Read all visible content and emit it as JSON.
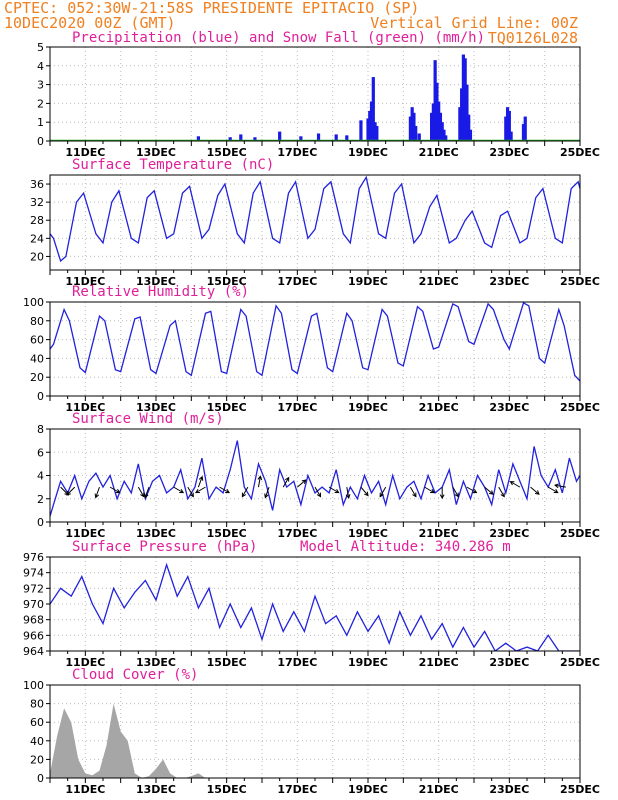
{
  "header": {
    "line1_left": "CPTEC:  052:30W-21:58S  PRESIDENTE EPITACIO (SP)",
    "line2_left": "10DEC2020 00Z (GMT)",
    "line2_right": "Vertical Grid Line: 00Z",
    "line3_right": "TQ0126L028"
  },
  "colors": {
    "header_text": "#f08020",
    "panel_title": "#e0209a",
    "series_line": "#2222dd",
    "precip_bar": "#1a1ae6",
    "snow_line": "#22aa22",
    "cloud_fill": "#a6a6a6",
    "grid": "#bbbbbb"
  },
  "chart_data": [
    {
      "id": "precip",
      "type": "bar",
      "title": "Precipitation (blue) and Snow Fall (green) (mm/h)",
      "ylim": [
        0,
        5
      ],
      "yticks": [
        0,
        1,
        2,
        3,
        4,
        5
      ],
      "xlim_days": [
        0,
        15
      ],
      "xtick_labels": [
        "11DEC",
        "13DEC",
        "15DEC",
        "17DEC",
        "19DEC",
        "21DEC",
        "23DEC",
        "25DEC"
      ],
      "grid": true,
      "series": [
        {
          "name": "Precipitation",
          "x": [
            4.2,
            5.1,
            5.4,
            5.8,
            6.5,
            7.1,
            7.6,
            8.1,
            8.4,
            8.8,
            9.0,
            9.05,
            9.1,
            9.15,
            9.2,
            9.25,
            10.2,
            10.25,
            10.3,
            10.35,
            10.45,
            10.8,
            10.85,
            10.9,
            10.95,
            11.0,
            11.05,
            11.1,
            11.15,
            11.2,
            11.6,
            11.65,
            11.7,
            11.75,
            11.8,
            11.85,
            11.9,
            12.9,
            12.95,
            13.0,
            13.05,
            13.4,
            13.45
          ],
          "values": [
            0.25,
            0.2,
            0.35,
            0.2,
            0.5,
            0.25,
            0.4,
            0.35,
            0.3,
            1.1,
            1.2,
            1.6,
            2.1,
            3.4,
            1.0,
            0.8,
            1.3,
            1.8,
            1.5,
            0.8,
            0.4,
            1.5,
            2.0,
            4.3,
            3.1,
            2.1,
            1.5,
            1.0,
            0.6,
            0.3,
            1.8,
            2.8,
            4.6,
            4.4,
            3.0,
            1.4,
            0.6,
            1.3,
            1.8,
            1.6,
            0.5,
            0.9,
            1.3
          ]
        },
        {
          "name": "Snow Fall",
          "x": [
            0,
            15
          ],
          "values": [
            0,
            0
          ]
        }
      ]
    },
    {
      "id": "temp",
      "type": "line",
      "title": "Surface Temperature (nC)",
      "ylim": [
        17,
        38
      ],
      "yticks": [
        20,
        24,
        28,
        32,
        36
      ],
      "xlim_days": [
        0,
        15
      ],
      "xtick_labels": [
        "11DEC",
        "13DEC",
        "15DEC",
        "17DEC",
        "19DEC",
        "21DEC",
        "23DEC",
        "25DEC"
      ],
      "grid": true,
      "series": [
        {
          "x": [
            0,
            0.1,
            0.3,
            0.45,
            0.75,
            0.95,
            1.3,
            1.5,
            1.75,
            1.95,
            2.3,
            2.5,
            2.75,
            2.95,
            3.3,
            3.5,
            3.75,
            3.95,
            4.3,
            4.5,
            4.75,
            4.95,
            5.3,
            5.5,
            5.75,
            5.95,
            6.3,
            6.5,
            6.75,
            6.95,
            7.3,
            7.5,
            7.75,
            7.95,
            8.3,
            8.5,
            8.75,
            8.95,
            9.3,
            9.5,
            9.75,
            9.95,
            10.3,
            10.5,
            10.75,
            10.95,
            11.3,
            11.5,
            11.75,
            11.95,
            12.3,
            12.5,
            12.75,
            12.95,
            13.3,
            13.5,
            13.75,
            13.95,
            14.3,
            14.5,
            14.75,
            14.95,
            15.0
          ],
          "values": [
            25,
            24,
            19,
            20,
            32,
            34,
            25,
            23,
            32,
            34.5,
            24,
            23,
            33,
            34.5,
            24,
            25,
            34,
            35.5,
            24,
            26,
            33.5,
            36,
            25,
            23,
            34,
            36.5,
            24,
            23,
            34,
            36.5,
            24,
            26,
            35,
            36.5,
            25,
            23,
            35,
            37.5,
            25,
            24,
            34,
            36,
            23,
            25,
            31,
            33.5,
            23,
            24,
            28,
            30,
            23,
            22,
            29,
            30,
            23,
            24,
            33,
            35,
            24,
            23,
            35,
            36.5,
            35
          ]
        }
      ]
    },
    {
      "id": "rh",
      "type": "line",
      "title": "Relative Humidity (%)",
      "ylim": [
        0,
        100
      ],
      "yticks": [
        0,
        20,
        40,
        60,
        80,
        100
      ],
      "xlim_days": [
        0,
        15
      ],
      "xtick_labels": [
        "11DEC",
        "13DEC",
        "15DEC",
        "17DEC",
        "19DEC",
        "21DEC",
        "23DEC",
        "25DEC"
      ],
      "grid": true,
      "series": [
        {
          "x": [
            0,
            0.1,
            0.4,
            0.55,
            0.85,
            1.0,
            1.4,
            1.55,
            1.85,
            2.0,
            2.4,
            2.55,
            2.85,
            3.0,
            3.4,
            3.55,
            3.85,
            4.0,
            4.4,
            4.55,
            4.85,
            5.0,
            5.4,
            5.55,
            5.85,
            6.0,
            6.4,
            6.55,
            6.85,
            7.0,
            7.4,
            7.55,
            7.85,
            8.0,
            8.4,
            8.55,
            8.85,
            9.0,
            9.4,
            9.55,
            9.85,
            10.0,
            10.4,
            10.55,
            10.85,
            11.0,
            11.4,
            11.55,
            11.85,
            12.0,
            12.4,
            12.55,
            12.85,
            13.0,
            13.4,
            13.55,
            13.85,
            14.0,
            14.4,
            14.55,
            14.85,
            15.0
          ],
          "values": [
            50,
            55,
            92,
            80,
            30,
            25,
            85,
            80,
            28,
            26,
            82,
            84,
            28,
            24,
            75,
            80,
            26,
            22,
            88,
            90,
            26,
            24,
            92,
            85,
            26,
            22,
            96,
            88,
            28,
            24,
            85,
            88,
            30,
            26,
            88,
            80,
            30,
            28,
            92,
            85,
            35,
            32,
            95,
            90,
            50,
            52,
            98,
            95,
            58,
            55,
            98,
            92,
            60,
            50,
            99,
            96,
            40,
            35,
            92,
            75,
            22,
            16
          ]
        }
      ]
    },
    {
      "id": "wind",
      "type": "line",
      "title": "Surface Wind (m/s)",
      "ylim": [
        0,
        8
      ],
      "yticks": [
        0,
        2,
        4,
        6,
        8
      ],
      "xlim_days": [
        0,
        15
      ],
      "xtick_labels": [
        "11DEC",
        "13DEC",
        "15DEC",
        "17DEC",
        "19DEC",
        "21DEC",
        "23DEC",
        "25DEC"
      ],
      "grid": true,
      "series": [
        {
          "x": [
            0,
            0.1,
            0.3,
            0.5,
            0.7,
            0.9,
            1.1,
            1.3,
            1.5,
            1.7,
            1.9,
            2.1,
            2.3,
            2.5,
            2.7,
            2.9,
            3.1,
            3.3,
            3.5,
            3.7,
            3.9,
            4.1,
            4.3,
            4.5,
            4.7,
            4.9,
            5.1,
            5.3,
            5.5,
            5.7,
            5.9,
            6.1,
            6.3,
            6.5,
            6.7,
            6.9,
            7.1,
            7.3,
            7.5,
            7.7,
            7.9,
            8.1,
            8.3,
            8.5,
            8.7,
            8.9,
            9.1,
            9.3,
            9.5,
            9.7,
            9.9,
            10.1,
            10.3,
            10.5,
            10.7,
            10.9,
            11.1,
            11.3,
            11.5,
            11.7,
            11.9,
            12.1,
            12.3,
            12.5,
            12.7,
            12.9,
            13.1,
            13.3,
            13.5,
            13.7,
            13.9,
            14.1,
            14.3,
            14.5,
            14.7,
            14.9,
            15.0
          ],
          "values": [
            0.5,
            1.5,
            3.5,
            2.5,
            4.0,
            2.0,
            3.5,
            4.2,
            3.0,
            4.0,
            2.0,
            3.5,
            2.5,
            5.0,
            2.0,
            3.5,
            4.0,
            2.5,
            3.0,
            4.5,
            2.0,
            3.0,
            5.5,
            2.0,
            3.0,
            2.5,
            4.5,
            7.0,
            3.0,
            2.0,
            5.0,
            3.5,
            1.0,
            4.5,
            3.0,
            3.5,
            1.5,
            4.0,
            2.5,
            3.0,
            2.5,
            4.5,
            1.5,
            3.0,
            2.0,
            4.0,
            2.5,
            3.5,
            1.5,
            4.0,
            2.0,
            3.0,
            3.5,
            2.0,
            4.0,
            2.5,
            3.0,
            4.5,
            1.5,
            3.5,
            2.0,
            4.0,
            3.0,
            1.5,
            4.5,
            2.5,
            5.0,
            3.5,
            2.0,
            6.5,
            4.0,
            3.0,
            4.5,
            2.5,
            5.5,
            3.5,
            4.0
          ]
        }
      ],
      "wind_arrows": [
        {
          "x": 0.3,
          "from_deg": 315
        },
        {
          "x": 0.7,
          "from_deg": 45
        },
        {
          "x": 1.4,
          "from_deg": 20
        },
        {
          "x": 1.7,
          "from_deg": 300
        },
        {
          "x": 2.5,
          "from_deg": 330
        },
        {
          "x": 2.8,
          "from_deg": 20
        },
        {
          "x": 3.5,
          "from_deg": 300
        },
        {
          "x": 3.9,
          "from_deg": 330
        },
        {
          "x": 4.2,
          "from_deg": 200
        },
        {
          "x": 4.4,
          "from_deg": 60
        },
        {
          "x": 4.8,
          "from_deg": 300
        },
        {
          "x": 5.6,
          "from_deg": 30
        },
        {
          "x": 5.9,
          "from_deg": 190
        },
        {
          "x": 6.2,
          "from_deg": 20
        },
        {
          "x": 6.6,
          "from_deg": 210
        },
        {
          "x": 7.0,
          "from_deg": 230
        },
        {
          "x": 7.5,
          "from_deg": 330
        },
        {
          "x": 7.9,
          "from_deg": 300
        },
        {
          "x": 8.4,
          "from_deg": 350
        },
        {
          "x": 8.8,
          "from_deg": 320
        },
        {
          "x": 9.5,
          "from_deg": 30
        },
        {
          "x": 10.2,
          "from_deg": 330
        },
        {
          "x": 10.6,
          "from_deg": 300
        },
        {
          "x": 11.1,
          "from_deg": 0
        },
        {
          "x": 11.4,
          "from_deg": 330
        },
        {
          "x": 11.8,
          "from_deg": 300
        },
        {
          "x": 12.3,
          "from_deg": 310
        },
        {
          "x": 12.7,
          "from_deg": 330
        },
        {
          "x": 13.3,
          "from_deg": 120
        },
        {
          "x": 13.6,
          "from_deg": 310
        },
        {
          "x": 14.1,
          "from_deg": 300
        },
        {
          "x": 14.6,
          "from_deg": 100
        }
      ]
    },
    {
      "id": "pressure",
      "type": "line",
      "title": "Surface Pressure (hPa)",
      "annotation": "Model Altitude: 340.286 m",
      "ylim": [
        964,
        976
      ],
      "yticks": [
        964,
        966,
        968,
        970,
        972,
        974,
        976
      ],
      "xlim_days": [
        0,
        15
      ],
      "xtick_labels": [
        "11DEC",
        "13DEC",
        "15DEC",
        "17DEC",
        "19DEC",
        "21DEC",
        "23DEC",
        "25DEC"
      ],
      "grid": true,
      "series": [
        {
          "x": [
            0,
            0.3,
            0.6,
            0.9,
            1.2,
            1.5,
            1.8,
            2.1,
            2.4,
            2.7,
            3.0,
            3.3,
            3.6,
            3.9,
            4.2,
            4.5,
            4.8,
            5.1,
            5.4,
            5.7,
            6.0,
            6.3,
            6.6,
            6.9,
            7.2,
            7.5,
            7.8,
            8.1,
            8.4,
            8.7,
            9.0,
            9.3,
            9.6,
            9.9,
            10.2,
            10.5,
            10.8,
            11.1,
            11.4,
            11.7,
            12.0,
            12.3,
            12.6,
            12.9,
            13.2,
            13.5,
            13.8,
            14.1,
            14.4,
            14.7,
            15.0
          ],
          "values": [
            970,
            972,
            971,
            973.5,
            970,
            967.5,
            972,
            969.5,
            971.5,
            973,
            970.5,
            975,
            971,
            973.5,
            969.5,
            972,
            967,
            970,
            967,
            969.5,
            965.5,
            970,
            966.5,
            969,
            966.5,
            971,
            967.5,
            968.5,
            966,
            969,
            966.5,
            968.5,
            965,
            969,
            966,
            968.5,
            965.5,
            967.5,
            964.5,
            967,
            964.5,
            966.5,
            964,
            965,
            964,
            964.5,
            964,
            966,
            964,
            964,
            964
          ]
        }
      ]
    },
    {
      "id": "cloud",
      "type": "area",
      "title": "Cloud Cover (%)",
      "ylim": [
        0,
        100
      ],
      "yticks": [
        0,
        20,
        40,
        60,
        80,
        100
      ],
      "xlim_days": [
        0,
        15
      ],
      "xtick_labels": [
        "11DEC",
        "13DEC",
        "15DEC",
        "17DEC",
        "19DEC",
        "21DEC",
        "23DEC",
        "25DEC"
      ],
      "grid": true,
      "series": [
        {
          "x": [
            0,
            0.2,
            0.4,
            0.6,
            0.8,
            1.0,
            1.2,
            1.4,
            1.6,
            1.8,
            2.0,
            2.2,
            2.4,
            2.6,
            2.8,
            3.0,
            3.2,
            3.4,
            3.6,
            3.8,
            4.0,
            4.2,
            4.4,
            4.6,
            4.8,
            5.0,
            5.5,
            6.0,
            6.5,
            7.0,
            7.5,
            8.0,
            8.5,
            9.0,
            9.5,
            10.0,
            10.5,
            11.0,
            11.5,
            12.0,
            12.5,
            12.8,
            13.0,
            13.2,
            13.4,
            13.6,
            13.8,
            14.0,
            14.2,
            14.4,
            14.6,
            14.8,
            15.0
          ],
          "values": [
            5,
            45,
            75,
            60,
            20,
            5,
            3,
            8,
            35,
            80,
            50,
            40,
            5,
            0,
            2,
            10,
            20,
            5,
            0,
            0,
            2,
            5,
            0,
            0,
            0,
            0,
            0,
            0,
            0,
            0,
            0,
            0,
            0,
            0,
            0,
            0,
            0,
            0,
            0,
            0,
            0,
            0,
            0,
            0,
            0,
            0,
            0,
            0,
            0,
            0,
            0,
            0,
            0
          ]
        }
      ]
    }
  ]
}
